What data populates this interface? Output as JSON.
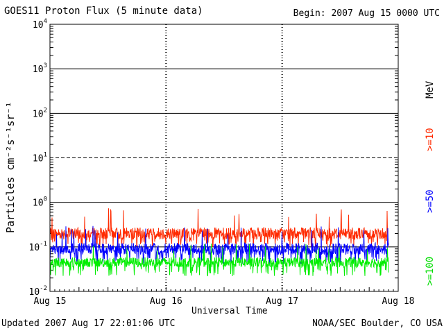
{
  "header": {
    "title": "GOES11 Proton Flux (5 minute data)",
    "begin": "Begin: 2007 Aug 15 0000 UTC"
  },
  "footer": {
    "updated": "Updated 2007 Aug 17 22:01:06 UTC",
    "credit": "NOAA/SEC Boulder, CO USA"
  },
  "colors": {
    "ge10": "#ff2a00",
    "ge50": "#0000ff",
    "ge100": "#00ee00",
    "grid": "#000000"
  },
  "chart_data": {
    "type": "line",
    "title": "GOES11 Proton Flux (5 minute data)",
    "xlabel": "Universal Time",
    "ylabel": "Particles cm⁻²s⁻¹sr⁻¹",
    "yscale": "log",
    "ylim": [
      0.01,
      10000
    ],
    "xlim": [
      "2007-08-15T00:00",
      "2007-08-18T00:00"
    ],
    "x_ticks": [
      "Aug 15",
      "Aug 16",
      "Aug 17",
      "Aug 18"
    ],
    "y_ticks": [
      {
        "base": "10",
        "exp": "-2"
      },
      {
        "base": "10",
        "exp": "-1"
      },
      {
        "base": "10",
        "exp": "0"
      },
      {
        "base": "10",
        "exp": "1"
      },
      {
        "base": "10",
        "exp": "2"
      },
      {
        "base": "10",
        "exp": "3"
      },
      {
        "base": "10",
        "exp": "4"
      }
    ],
    "right_labels": {
      "unit": "MeV",
      "ge10": ">=10",
      "ge50": ">=50",
      "ge100": ">=100"
    },
    "series": [
      {
        "name": ">=10",
        "x_range": [
          "2007-08-15T00:00",
          "2007-08-17T22:00"
        ],
        "typical": 0.2,
        "min": 0.1,
        "max": 0.75
      },
      {
        "name": ">=50",
        "x_range": [
          "2007-08-15T00:00",
          "2007-08-17T22:00"
        ],
        "typical": 0.09,
        "min": 0.04,
        "max": 0.3
      },
      {
        "name": ">=100",
        "x_range": [
          "2007-08-15T00:00",
          "2007-08-17T22:00"
        ],
        "typical": 0.045,
        "min": 0.022,
        "max": 0.12
      }
    ]
  }
}
